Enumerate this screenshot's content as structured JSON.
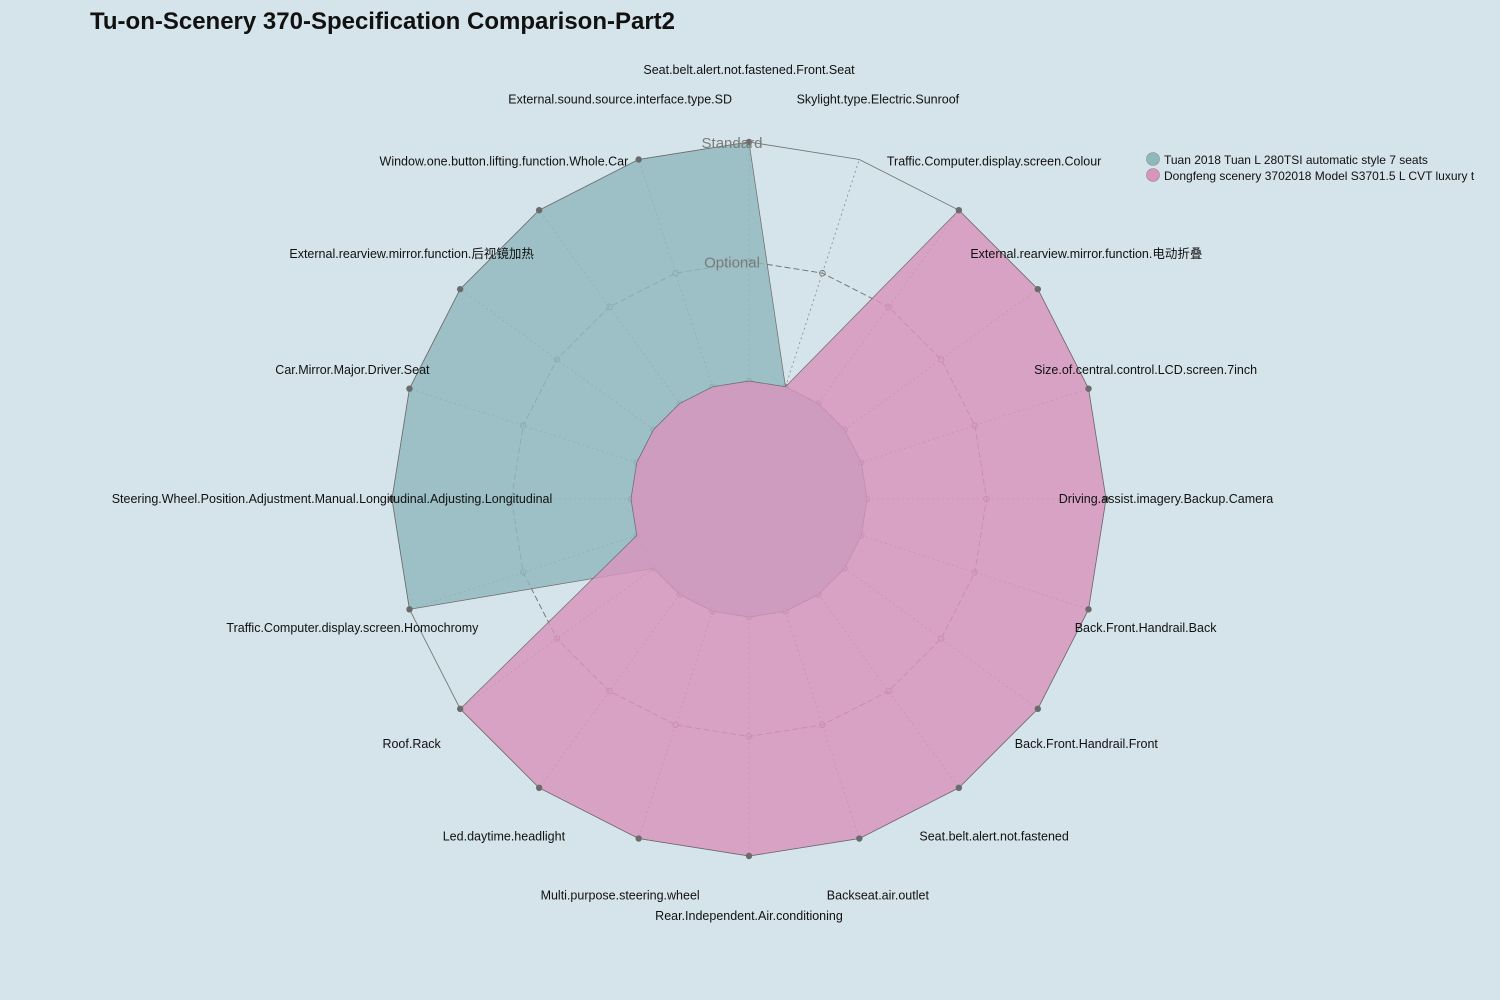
{
  "chart_data": {
    "type": "radar",
    "title": "Tu-on-Scenery 370-Specification Comparison-Part2",
    "levels": [
      "",
      "Optional",
      "Standard"
    ],
    "axes": [
      "Seat.belt.alert.not.fastened.Front.Seat",
      "Skylight.type.Electric.Sunroof",
      "Traffic.Computer.display.screen.Colour",
      "External.rearview.mirror.function.电动折叠",
      "Size.of.central.control.LCD.screen.7inch",
      "Driving.assist.imagery.Backup.Camera",
      "Back.Front.Handrail.Back",
      "Back.Front.Handrail.Front",
      "Seat.belt.alert.not.fastened",
      "Backseat.air.outlet",
      "Rear.Independent.Air.conditioning",
      "Multi.purpose.steering.wheel",
      "Led.daytime.headlight",
      "Roof.Rack",
      "Traffic.Computer.display.screen.Homochromy",
      "Steering.Wheel.Position.Adjustment.Manual.Longitudinal.Adjusting.Longitudinal",
      "Car.Mirror.Major.Driver.Seat",
      "External.rearview.mirror.function.后视镜加热",
      "Window.one.button.lifting.function.Whole.Car",
      "External.sound.source.interface.type.SD"
    ],
    "series": [
      {
        "name": "Tuan 2018 Tuan L 280TSI automatic style 7 seats",
        "color": "#8fb8bd",
        "values": [
          2,
          0,
          0,
          0,
          0,
          0,
          0,
          0,
          0,
          0,
          0,
          0,
          0,
          0,
          2,
          2,
          2,
          2,
          2,
          2
        ]
      },
      {
        "name": "Dongfeng scenery 3702018 Model S3701.5 L CVT luxury t",
        "color": "#d894bd",
        "values": [
          0,
          0,
          2,
          2,
          2,
          2,
          2,
          2,
          2,
          2,
          2,
          2,
          2,
          2,
          0,
          0,
          0,
          0,
          0,
          0
        ]
      }
    ],
    "grid": true,
    "legend_position": "top-right"
  }
}
